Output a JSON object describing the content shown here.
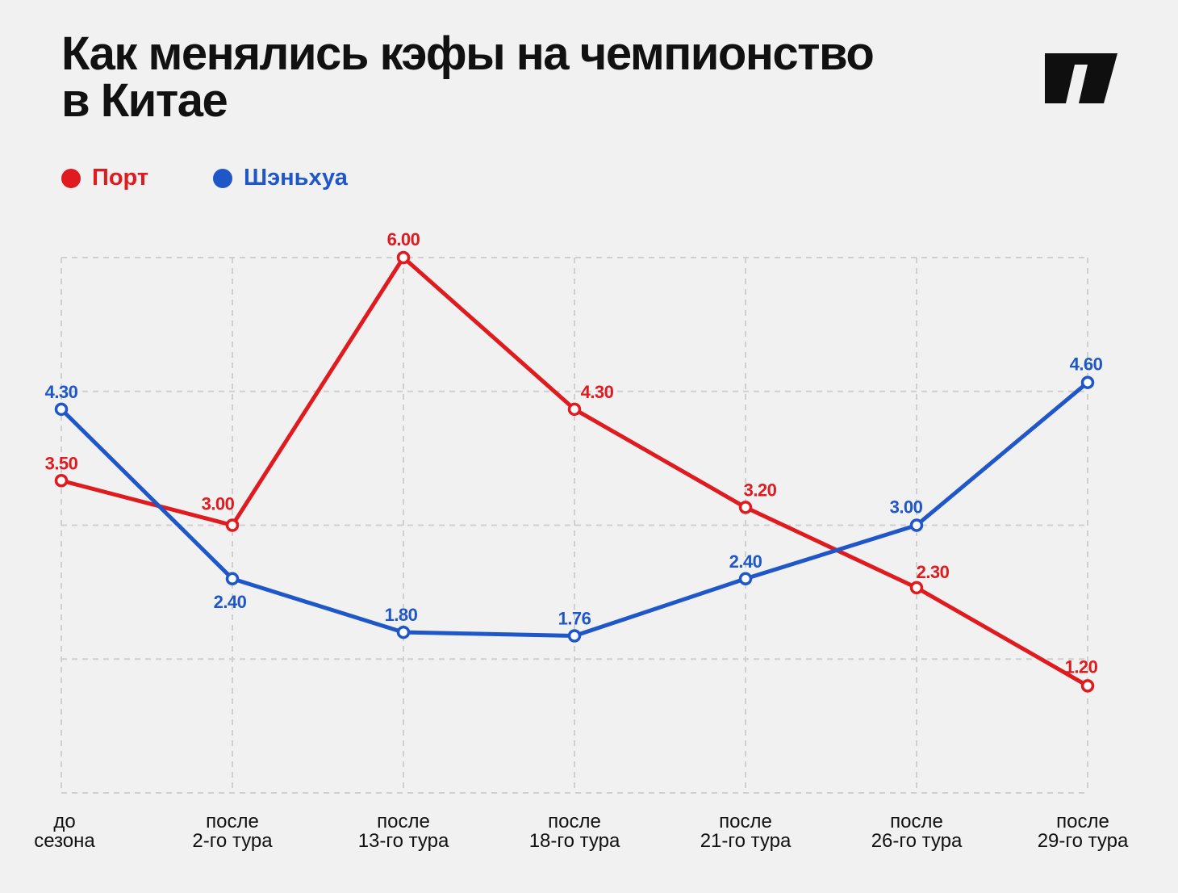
{
  "title": [
    "Как менялись кэфы на чемпионство",
    "в Китае"
  ],
  "colors": {
    "port": "#e01b1f",
    "shenhua": "#1f57c8",
    "grid": "#cfcfcf",
    "background": "#f1f1f1"
  },
  "chart_data": {
    "type": "line",
    "title": "Как менялись кэфы на чемпионство в Китае",
    "categories": [
      [
        "до",
        "сезона"
      ],
      [
        "после",
        "2-го тура"
      ],
      [
        "после",
        "13-го тура"
      ],
      [
        "после",
        "18-го тура"
      ],
      [
        "после",
        "21-го тура"
      ],
      [
        "после",
        "26-го тура"
      ],
      [
        "после",
        "29-го тура"
      ]
    ],
    "series": [
      {
        "name": "Порт",
        "color": "#e01b1f",
        "values": [
          3.5,
          3.0,
          6.0,
          4.3,
          3.2,
          2.3,
          1.2
        ],
        "labels": [
          "3.50",
          "3.00",
          "6.00",
          "4.30",
          "3.20",
          "2.30",
          "1.20"
        ]
      },
      {
        "name": "Шэньхуа",
        "color": "#1f57c8",
        "values": [
          4.3,
          2.4,
          1.8,
          1.76,
          2.4,
          3.0,
          4.6
        ],
        "labels": [
          "4.30",
          "2.40",
          "1.80",
          "1.76",
          "2.40",
          "3.00",
          "4.60"
        ]
      }
    ],
    "ylim": [
      0,
      6
    ],
    "grid": true,
    "legend": "top-left",
    "xlabel": "",
    "ylabel": ""
  }
}
